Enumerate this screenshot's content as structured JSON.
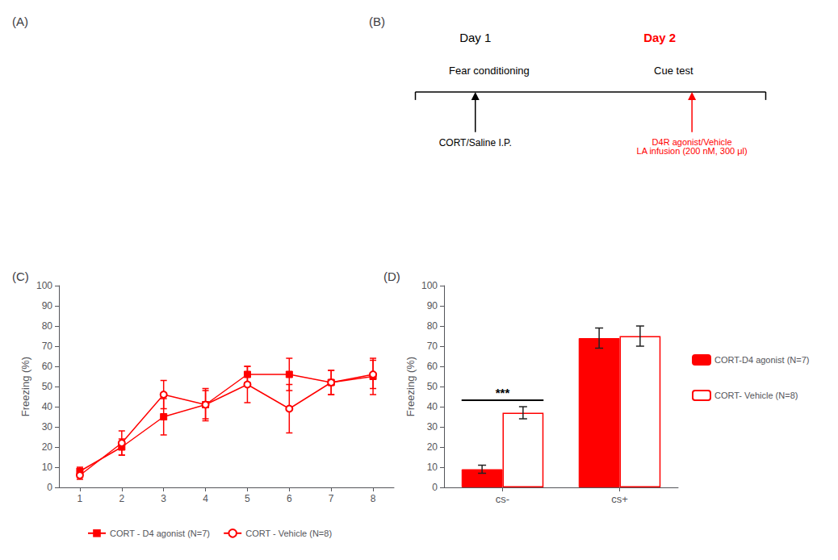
{
  "chart_data": [
    {
      "type": "blank",
      "title": "(A)"
    },
    {
      "type": "diagram",
      "title": "(B)",
      "annotations": [
        {
          "text": "Day 1",
          "color": "#000000"
        },
        {
          "text": "Day 2",
          "color": "#FF0000"
        },
        {
          "text": "Fear conditioning",
          "color": "#000000"
        },
        {
          "text": "Cue test",
          "color": "#000000"
        },
        {
          "text": "CORT/Saline I.P.",
          "color": "#000000"
        },
        {
          "text": "D4R agonist/Vehicle\nLA infusion (200 nM, 300 μl)",
          "color": "#FF0000"
        }
      ]
    },
    {
      "type": "line",
      "title": "(C)",
      "x": [
        1,
        2,
        3,
        4,
        5,
        6,
        7,
        8
      ],
      "xlim": [
        0.5,
        8.5
      ],
      "xticks": [
        1,
        2,
        3,
        4,
        5,
        6,
        7,
        8
      ],
      "ylabel": "Freezing (%)",
      "ylim": [
        0,
        100
      ],
      "yticks": [
        0,
        10,
        20,
        30,
        40,
        50,
        60,
        70,
        80,
        90,
        100
      ],
      "grid": false,
      "legend": "bottom",
      "series": [
        {
          "name": "CORT - D4 agonist (N=7)",
          "color": "#FF0000",
          "marker": "square",
          "values": [
            8,
            20,
            35,
            41,
            56,
            56,
            52,
            55
          ],
          "errors": [
            2,
            4,
            9,
            8,
            4,
            8,
            6,
            9
          ]
        },
        {
          "name": "CORT - Vehicle (N=8)",
          "color": "#FF0000",
          "marker": "open_circle",
          "values": [
            6,
            22,
            46,
            41,
            51,
            39,
            52,
            56
          ],
          "errors": [
            2,
            6,
            7,
            7,
            9,
            12,
            6,
            7
          ]
        }
      ]
    },
    {
      "type": "bar",
      "title": "(D)",
      "categories": [
        "cs-",
        "cs+"
      ],
      "ylabel": "Freezing (%)",
      "ylim": [
        0,
        100
      ],
      "yticks": [
        0,
        10,
        20,
        30,
        40,
        50,
        60,
        70,
        80,
        90,
        100
      ],
      "grid": false,
      "legend": "right",
      "series": [
        {
          "name": "CORT-D4 agonist (N=7)",
          "color": "#FF0000",
          "marker": "filled",
          "values": [
            9,
            74
          ],
          "errors": [
            2,
            5
          ]
        },
        {
          "name": "CORT- Vehicle (N=8)",
          "color": "#FF0000",
          "marker": "open",
          "values": [
            37,
            75
          ],
          "errors": [
            3,
            5
          ]
        }
      ],
      "annotations": [
        {
          "text": "***",
          "category": "cs-"
        }
      ]
    }
  ]
}
